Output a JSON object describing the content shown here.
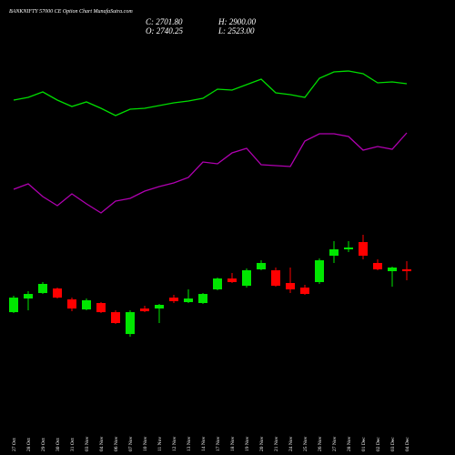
{
  "chart_data": {
    "type": "candlestick",
    "title": "BANKNIFTY 57000 CE Option Chart MunafaSutra.com",
    "ohlc_labels": {
      "close": "C: 2701.80",
      "open": "O: 2740.25",
      "high": "H: 2900.00",
      "low": "L: 2523.00"
    },
    "categories": [
      "27 Oct",
      "28 Oct",
      "29 Oct",
      "30 Oct",
      "31 Oct",
      "03 Nov",
      "04 Nov",
      "06 Nov",
      "07 Nov",
      "10 Nov",
      "11 Nov",
      "12 Nov",
      "13 Nov",
      "14 Nov",
      "17 Nov",
      "18 Nov",
      "19 Nov",
      "20 Nov",
      "21 Nov",
      "24 Nov",
      "25 Nov",
      "26 Nov",
      "27 Nov",
      "28 Nov",
      "01 Dec",
      "02 Dec",
      "03 Dec",
      "04 Dec"
    ],
    "open": [
      1894,
      2163,
      2271,
      2361,
      2146,
      1948,
      2074,
      1894,
      1463,
      1966,
      1966,
      2181,
      2092,
      2074,
      2343,
      2558,
      2415,
      2738,
      2720,
      2469,
      2379,
      2487,
      3007,
      3133,
      3276,
      2864,
      2702,
      2740.25
    ],
    "high": [
      2217,
      2307,
      2487,
      2379,
      2181,
      2163,
      2092,
      1930,
      1930,
      2020,
      2056,
      2235,
      2343,
      2271,
      2576,
      2666,
      2756,
      2917,
      2774,
      2774,
      2433,
      2953,
      3294,
      3294,
      3420,
      2935,
      2792,
      2900
    ],
    "low": [
      1876,
      1930,
      2253,
      2163,
      1912,
      1930,
      1876,
      1661,
      1410,
      1894,
      1679,
      2074,
      2074,
      2056,
      2325,
      2469,
      2379,
      2720,
      2397,
      2271,
      2235,
      2451,
      2864,
      3079,
      2935,
      2720,
      2397,
      2523
    ],
    "close": [
      2181,
      2253,
      2451,
      2181,
      1966,
      2128,
      1894,
      1679,
      1894,
      1912,
      2038,
      2110,
      2163,
      2253,
      2558,
      2487,
      2720,
      2864,
      2415,
      2343,
      2253,
      2917,
      3133,
      3169,
      3007,
      2738,
      2774,
      2701.8
    ],
    "up_color": "#00e600",
    "down_color": "#ff0000",
    "lines": [
      {
        "color": "#00dd00",
        "values": [
          90,
          93,
          99,
          90,
          83,
          88,
          81,
          73,
          80,
          81,
          84,
          87,
          89,
          92,
          102,
          101,
          107,
          113,
          98,
          96,
          93,
          114,
          121,
          122,
          119,
          109,
          110,
          108
        ]
      },
      {
        "color": "#b000b0",
        "values": [
          92,
          98,
          84,
          74,
          87,
          76,
          66,
          79,
          82,
          90,
          95,
          99,
          105,
          122,
          120,
          132,
          137,
          119,
          118,
          117,
          145,
          153,
          153,
          150,
          135,
          139,
          136,
          154
        ]
      }
    ]
  }
}
